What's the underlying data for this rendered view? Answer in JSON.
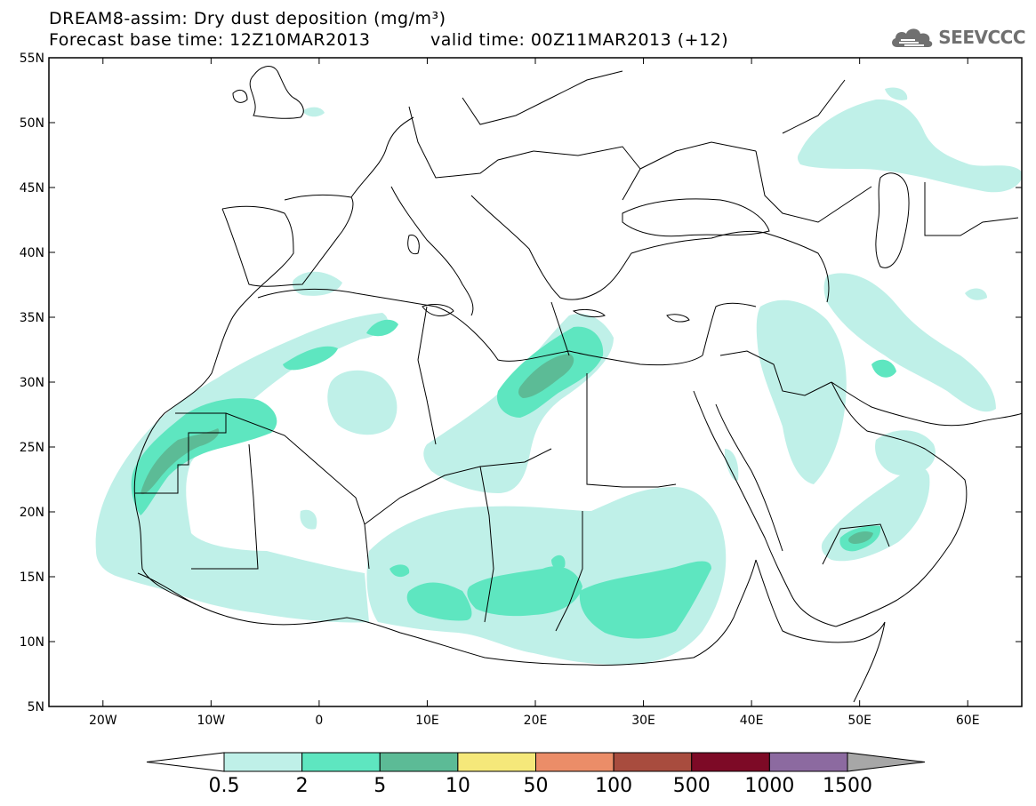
{
  "header": {
    "title_line1": "DREAM8-assim: Dry dust deposition (mg/m³)",
    "title_line2": "Forecast base time: 12Z10MAR2013",
    "valid_time": "valid time: 00Z11MAR2013 (+12)"
  },
  "logo": {
    "text": "SEEVCCC",
    "icon": "cloud-icon"
  },
  "map": {
    "lat_labels": [
      "55N",
      "50N",
      "45N",
      "40N",
      "35N",
      "30N",
      "25N",
      "20N",
      "15N",
      "10N",
      "5N"
    ],
    "lon_labels": [
      "20W",
      "10W",
      "0",
      "10E",
      "20E",
      "30E",
      "40E",
      "50E",
      "60E"
    ]
  },
  "colorbar": {
    "labels": [
      "0.5",
      "2",
      "5",
      "10",
      "50",
      "100",
      "500",
      "1000",
      "1500"
    ],
    "colors": [
      "#bff0e8",
      "#5ee6c0",
      "#5cbb96",
      "#f5e87a",
      "#eb8d68",
      "#a84c3e",
      "#7d0a26",
      "#8c6aa0"
    ],
    "under_color": "#ffffff",
    "over_color": "#a7a7a7"
  },
  "legend_colors": {
    "land_outline": "#000000",
    "dust_light": "#bff0e8",
    "dust_medium": "#5ee6c0",
    "dust_heavy": "#5cbb96"
  }
}
